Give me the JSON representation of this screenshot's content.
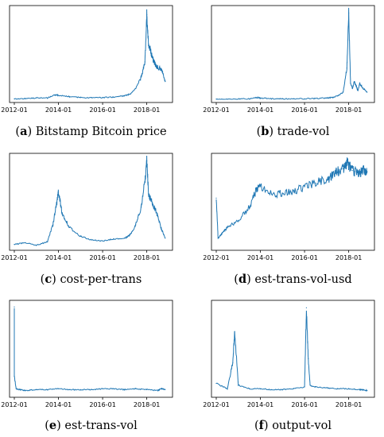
{
  "figure": {
    "panels": [
      {
        "letter": "a",
        "caption": "Bitstamp Bitcoin price"
      },
      {
        "letter": "b",
        "caption": "trade-vol"
      },
      {
        "letter": "c",
        "caption": "cost-per-trans"
      },
      {
        "letter": "d",
        "caption": "est-trans-vol-usd"
      },
      {
        "letter": "e",
        "caption": "est-trans-vol"
      },
      {
        "letter": "f",
        "caption": "output-vol"
      }
    ]
  },
  "chart_data": [
    {
      "type": "line",
      "title": "Bitstamp Bitcoin price",
      "line_color": "#1f77b4",
      "x_ticks": [
        "2012-01",
        "2014-01",
        "2016-01",
        "2018-01"
      ],
      "x": [
        "2012-01",
        "2012-07",
        "2013-01",
        "2013-07",
        "2013-11",
        "2014-01",
        "2014-07",
        "2015-01",
        "2015-07",
        "2016-01",
        "2016-07",
        "2017-01",
        "2017-04",
        "2017-07",
        "2017-10",
        "2017-12",
        "2018-01",
        "2018-02",
        "2018-03",
        "2018-04",
        "2018-05",
        "2018-06",
        "2018-07",
        "2018-09",
        "2018-11"
      ],
      "series": [
        {
          "values": [
            0.5,
            0.8,
            1.5,
            1.5,
            5,
            4.5,
            3,
            2,
            1.8,
            2,
            2.5,
            4,
            6,
            12,
            25,
            42,
            95,
            60,
            55,
            47,
            42,
            38,
            36,
            34,
            20
          ]
        }
      ]
    },
    {
      "type": "line",
      "title": "trade-vol",
      "line_color": "#1f77b4",
      "x_ticks": [
        "2012-01",
        "2014-01",
        "2016-01",
        "2018-01"
      ],
      "x": [
        "2012-01",
        "2012-07",
        "2013-01",
        "2013-07",
        "2013-11",
        "2014-01",
        "2014-07",
        "2015-01",
        "2015-07",
        "2016-01",
        "2016-07",
        "2017-01",
        "2017-04",
        "2017-07",
        "2017-10",
        "2017-12",
        "2018-01",
        "2018-02",
        "2018-03",
        "2018-04",
        "2018-05",
        "2018-06",
        "2018-07",
        "2018-09",
        "2018-11"
      ],
      "series": [
        {
          "values": [
            0.2,
            0.2,
            0.3,
            0.5,
            2,
            1.5,
            0.6,
            0.5,
            0.5,
            0.6,
            1,
            1.5,
            2,
            4,
            8,
            35,
            97,
            18,
            12,
            20,
            15,
            10,
            18,
            12,
            8
          ]
        }
      ]
    },
    {
      "type": "line",
      "title": "cost-per-trans",
      "line_color": "#1f77b4",
      "x_ticks": [
        "2012-01",
        "2014-01",
        "2016-01",
        "2018-01"
      ],
      "x": [
        "2012-01",
        "2012-07",
        "2013-01",
        "2013-07",
        "2013-10",
        "2013-12",
        "2014-01",
        "2014-03",
        "2014-07",
        "2015-01",
        "2015-07",
        "2016-01",
        "2016-07",
        "2017-01",
        "2017-04",
        "2017-07",
        "2017-10",
        "2017-12",
        "2018-01",
        "2018-02",
        "2018-03",
        "2018-05",
        "2018-07",
        "2018-09",
        "2018-11"
      ],
      "series": [
        {
          "values": [
            3,
            5,
            2,
            6,
            25,
            50,
            62,
            38,
            22,
            12,
            8,
            7,
            9,
            10,
            14,
            25,
            45,
            75,
            97,
            60,
            55,
            45,
            35,
            20,
            10
          ]
        }
      ]
    },
    {
      "type": "line",
      "title": "est-trans-vol-usd",
      "line_color": "#1f77b4",
      "x_ticks": [
        "2012-01",
        "2014-01",
        "2016-01",
        "2018-01"
      ],
      "x": [
        "2012-01",
        "2012-02",
        "2012-04",
        "2012-07",
        "2013-01",
        "2013-07",
        "2013-11",
        "2014-01",
        "2014-07",
        "2015-01",
        "2015-07",
        "2016-01",
        "2016-07",
        "2017-01",
        "2017-04",
        "2017-07",
        "2017-10",
        "2017-12",
        "2018-01",
        "2018-03",
        "2018-05",
        "2018-07",
        "2018-09",
        "2018-11"
      ],
      "series": [
        {
          "values": [
            55,
            10,
            15,
            22,
            30,
            45,
            65,
            68,
            60,
            60,
            63,
            68,
            72,
            76,
            80,
            85,
            88,
            95,
            92,
            86,
            85,
            82,
            88,
            85
          ]
        }
      ]
    },
    {
      "type": "line",
      "title": "est-trans-vol",
      "line_color": "#1f77b4",
      "x_ticks": [
        "2012-01",
        "2014-01",
        "2016-01",
        "2018-01"
      ],
      "x": [
        "2012-01",
        "2012-01",
        "2012-02",
        "2012-04",
        "2012-07",
        "2013-01",
        "2013-07",
        "2014-01",
        "2014-07",
        "2015-01",
        "2015-07",
        "2016-01",
        "2016-07",
        "2017-01",
        "2017-07",
        "2018-01",
        "2018-07",
        "2018-09",
        "2018-11"
      ],
      "series": [
        {
          "values": [
            98,
            20,
            6,
            5,
            4,
            5,
            5,
            6,
            5,
            5,
            5,
            6,
            6,
            5,
            6,
            5,
            4,
            6,
            5
          ]
        }
      ]
    },
    {
      "type": "line",
      "title": "output-vol",
      "line_color": "#1f77b4",
      "x_ticks": [
        "2012-01",
        "2014-01",
        "2016-01",
        "2018-01"
      ],
      "x": [
        "2012-01",
        "2012-07",
        "2012-10",
        "2012-11",
        "2013-01",
        "2013-07",
        "2014-01",
        "2014-07",
        "2015-01",
        "2015-07",
        "2016-01",
        "2016-02",
        "2016-03",
        "2016-04",
        "2016-07",
        "2017-01",
        "2017-07",
        "2018-01",
        "2018-07",
        "2018-09",
        "2018-11"
      ],
      "series": [
        {
          "values": [
            12,
            6,
            35,
            70,
            10,
            6,
            6,
            5,
            5,
            6,
            8,
            97,
            40,
            10,
            8,
            7,
            6,
            6,
            5,
            5,
            4
          ]
        }
      ]
    }
  ]
}
